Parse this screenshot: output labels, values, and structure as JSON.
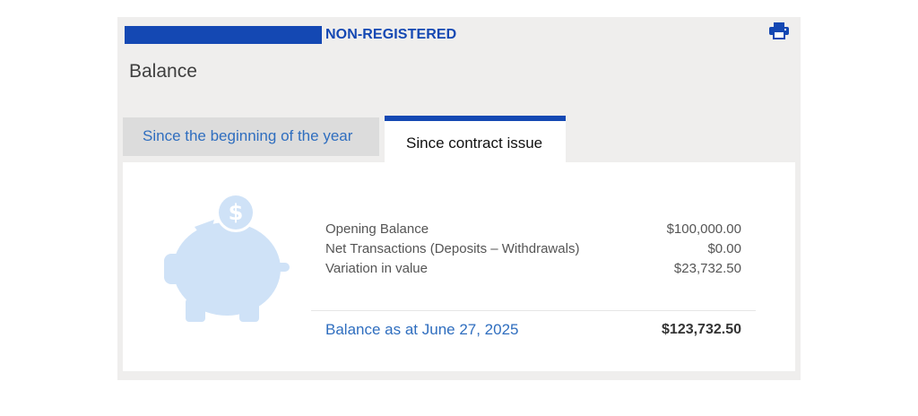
{
  "header": {
    "account_type": "NON-REGISTERED",
    "accent_color": "#1448b3",
    "print_icon": "printer-icon"
  },
  "title": "Balance",
  "tabs": [
    {
      "label": "Since the beginning of the year",
      "active": false
    },
    {
      "label": "Since contract issue",
      "active": true
    }
  ],
  "summary": {
    "icon": "piggy-bank-dollar-icon",
    "rows": [
      {
        "label": "Opening Balance",
        "value": "$100,000.00"
      },
      {
        "label": "Net Transactions (Deposits – Withdrawals)",
        "value": "$0.00"
      },
      {
        "label": "Variation in value",
        "value": "$23,732.50"
      }
    ],
    "balance": {
      "label": "Balance as at June 27, 2025",
      "value": "$123,732.50"
    }
  }
}
